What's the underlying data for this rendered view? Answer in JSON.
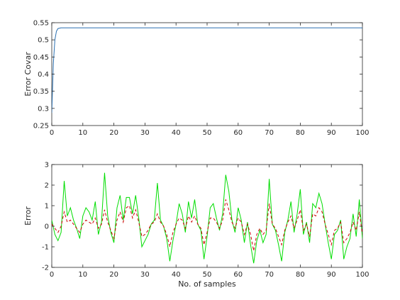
{
  "chart_data": [
    {
      "type": "line",
      "ylabel": "Error Covar",
      "xlabel": "",
      "xlim": [
        0,
        100
      ],
      "ylim": [
        0.25,
        0.55
      ],
      "xticks": [
        0,
        10,
        20,
        30,
        40,
        50,
        60,
        70,
        80,
        90,
        100
      ],
      "xtick_labels": [
        "0",
        "10",
        "20",
        "30",
        "40",
        "50",
        "60",
        "70",
        "80",
        "90",
        "100"
      ],
      "yticks": [
        0.25,
        0.3,
        0.35,
        0.4,
        0.45,
        0.5,
        0.55
      ],
      "ytick_labels": [
        "0.25",
        "0.3",
        "0.35",
        "0.4",
        "0.45",
        "0.5",
        "0.55"
      ],
      "grid": false,
      "series": [
        {
          "color": "#2a6fb0",
          "x": [
            0,
            0.5,
            1,
            1.5,
            2,
            3,
            4,
            5,
            10,
            20,
            30,
            40,
            50,
            60,
            70,
            80,
            90,
            100
          ],
          "y": [
            0.287,
            0.43,
            0.5,
            0.525,
            0.533,
            0.535,
            0.535,
            0.535,
            0.535,
            0.535,
            0.535,
            0.535,
            0.535,
            0.535,
            0.535,
            0.535,
            0.535,
            0.535
          ]
        }
      ]
    },
    {
      "type": "line",
      "ylabel": "Error",
      "xlabel": "No. of samples",
      "xlim": [
        0,
        100
      ],
      "ylim": [
        -2,
        3
      ],
      "xticks": [
        0,
        10,
        20,
        30,
        40,
        50,
        60,
        70,
        80,
        90,
        100
      ],
      "xtick_labels": [
        "0",
        "10",
        "20",
        "30",
        "40",
        "50",
        "60",
        "70",
        "80",
        "90",
        "100"
      ],
      "yticks": [
        -2,
        -1,
        0,
        1,
        2,
        3
      ],
      "ytick_labels": [
        "-2",
        "-1",
        "0",
        "1",
        "2",
        "3"
      ],
      "grid": false,
      "series": [
        {
          "color": "#00dd00",
          "style": "solid",
          "x": [
            0,
            1,
            2,
            3,
            4,
            5,
            6,
            7,
            8,
            9,
            10,
            11,
            12,
            13,
            14,
            15,
            16,
            17,
            18,
            19,
            20,
            21,
            22,
            23,
            24,
            25,
            26,
            27,
            28,
            29,
            30,
            31,
            32,
            33,
            34,
            35,
            36,
            37,
            38,
            39,
            40,
            41,
            42,
            43,
            44,
            45,
            46,
            47,
            48,
            49,
            50,
            51,
            52,
            53,
            54,
            55,
            56,
            57,
            58,
            59,
            60,
            61,
            62,
            63,
            64,
            65,
            66,
            67,
            68,
            69,
            70,
            71,
            72,
            73,
            74,
            75,
            76,
            77,
            78,
            79,
            80,
            81,
            82,
            83,
            84,
            85,
            86,
            87,
            88,
            89,
            90,
            91,
            92,
            93,
            94,
            95,
            96,
            97,
            98,
            99,
            100
          ],
          "y": [
            0.3,
            -0.4,
            -0.7,
            -0.3,
            2.2,
            0.5,
            0.9,
            0.3,
            -0.1,
            -0.6,
            0.5,
            0.9,
            0.7,
            0.3,
            1.2,
            -0.4,
            0.2,
            2.6,
            0.5,
            -0.3,
            -0.8,
            0.9,
            1.5,
            0.3,
            1.4,
            1.4,
            0.6,
            1.5,
            0.4,
            -1.0,
            -0.7,
            -0.4,
            0.1,
            0.3,
            2.1,
            0.3,
            0.0,
            -0.6,
            -1.7,
            -0.7,
            0.1,
            1.1,
            0.6,
            -0.3,
            1.2,
            0.4,
            1.3,
            0.1,
            -0.2,
            -1.6,
            -0.5,
            0.9,
            1.1,
            0.4,
            -0.2,
            0.6,
            2.5,
            1.7,
            0.3,
            -0.3,
            0.9,
            0.3,
            -0.8,
            0.2,
            -0.9,
            -1.8,
            -0.7,
            -0.2,
            -0.8,
            -0.4,
            2.3,
            0.1,
            -0.2,
            -0.9,
            -1.7,
            -0.3,
            0.3,
            1.2,
            -0.3,
            0.6,
            1.8,
            -0.4,
            0.2,
            -0.8,
            1.1,
            0.9,
            1.6,
            1.1,
            0.1,
            -0.8,
            -1.6,
            -0.4,
            -0.2,
            0.3,
            -1.6,
            -1.0,
            -0.6,
            0.6,
            -0.5,
            1.3,
            -0.6
          ]
        },
        {
          "color": "#cc0000",
          "style": "dashed",
          "x": [
            0,
            1,
            2,
            3,
            4,
            5,
            6,
            7,
            8,
            9,
            10,
            11,
            12,
            13,
            14,
            15,
            16,
            17,
            18,
            19,
            20,
            21,
            22,
            23,
            24,
            25,
            26,
            27,
            28,
            29,
            30,
            31,
            32,
            33,
            34,
            35,
            36,
            37,
            38,
            39,
            40,
            41,
            42,
            43,
            44,
            45,
            46,
            47,
            48,
            49,
            50,
            51,
            52,
            53,
            54,
            55,
            56,
            57,
            58,
            59,
            60,
            61,
            62,
            63,
            64,
            65,
            66,
            67,
            68,
            69,
            70,
            71,
            72,
            73,
            74,
            75,
            76,
            77,
            78,
            79,
            80,
            81,
            82,
            83,
            84,
            85,
            86,
            87,
            88,
            89,
            90,
            91,
            92,
            93,
            94,
            95,
            96,
            97,
            98,
            99,
            100
          ],
          "y": [
            0.1,
            -0.1,
            -0.3,
            0.0,
            0.7,
            0.2,
            0.3,
            0.1,
            -0.1,
            -0.3,
            0.1,
            0.3,
            0.2,
            0.1,
            0.4,
            -0.1,
            0.1,
            0.8,
            0.2,
            -0.2,
            -0.6,
            0.3,
            0.7,
            0.2,
            0.9,
            1.0,
            0.4,
            0.8,
            0.2,
            -0.5,
            -0.4,
            -0.2,
            0.1,
            0.2,
            0.6,
            0.2,
            0.0,
            -0.4,
            -1.0,
            -0.3,
            0.1,
            0.4,
            0.3,
            -0.1,
            0.5,
            0.2,
            0.5,
            0.1,
            -0.1,
            -0.9,
            -0.3,
            0.4,
            0.4,
            0.2,
            -0.1,
            0.3,
            1.3,
            0.8,
            0.2,
            -0.1,
            0.4,
            0.2,
            -0.4,
            0.1,
            -0.4,
            -1.2,
            -0.4,
            -0.1,
            -0.4,
            -0.2,
            1.1,
            0.1,
            -0.1,
            -0.5,
            -0.9,
            -0.2,
            0.2,
            0.5,
            -0.1,
            0.3,
            0.8,
            -0.2,
            0.1,
            -0.5,
            0.6,
            0.5,
            0.9,
            0.7,
            0.1,
            -0.4,
            -0.9,
            -0.2,
            -0.1,
            0.2,
            -0.8,
            -0.6,
            -0.3,
            0.2,
            -0.2,
            0.7,
            -0.4
          ]
        }
      ]
    }
  ]
}
